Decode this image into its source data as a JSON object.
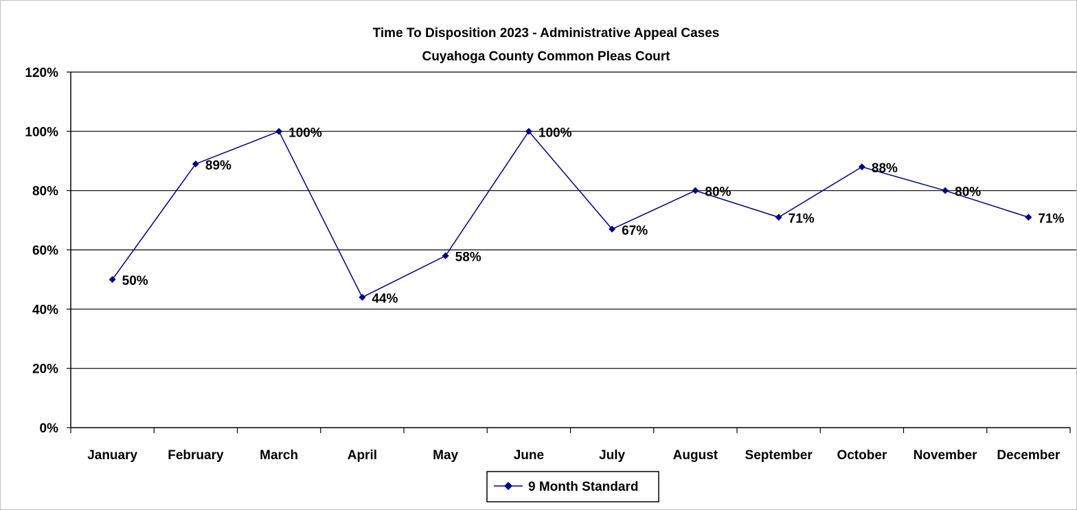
{
  "chart_data": {
    "type": "line",
    "title": "Time To Disposition 2023 - Administrative  Appeal Cases",
    "subtitle": "Cuyahoga County Common Pleas Court",
    "xlabel": "",
    "ylabel": "",
    "categories": [
      "January",
      "February",
      "March",
      "April",
      "May",
      "June",
      "July",
      "August",
      "September",
      "October",
      "November",
      "December"
    ],
    "series": [
      {
        "name": "9 Month Standard",
        "values": [
          50,
          89,
          100,
          44,
          58,
          100,
          67,
          80,
          71,
          88,
          80,
          71
        ],
        "labels": [
          "50%",
          "89%",
          "100%",
          "44%",
          "58%",
          "100%",
          "67%",
          "80%",
          "71%",
          "88%",
          "80%",
          "71%"
        ],
        "color": "#000080",
        "marker": "diamond"
      }
    ],
    "ylim": [
      0,
      120
    ],
    "yticks": [
      0,
      20,
      40,
      60,
      80,
      100,
      120
    ],
    "ytick_labels": [
      "0%",
      "20%",
      "40%",
      "60%",
      "80%",
      "100%",
      "120%"
    ],
    "grid": "horizontal",
    "legend_position": "bottom-center"
  }
}
